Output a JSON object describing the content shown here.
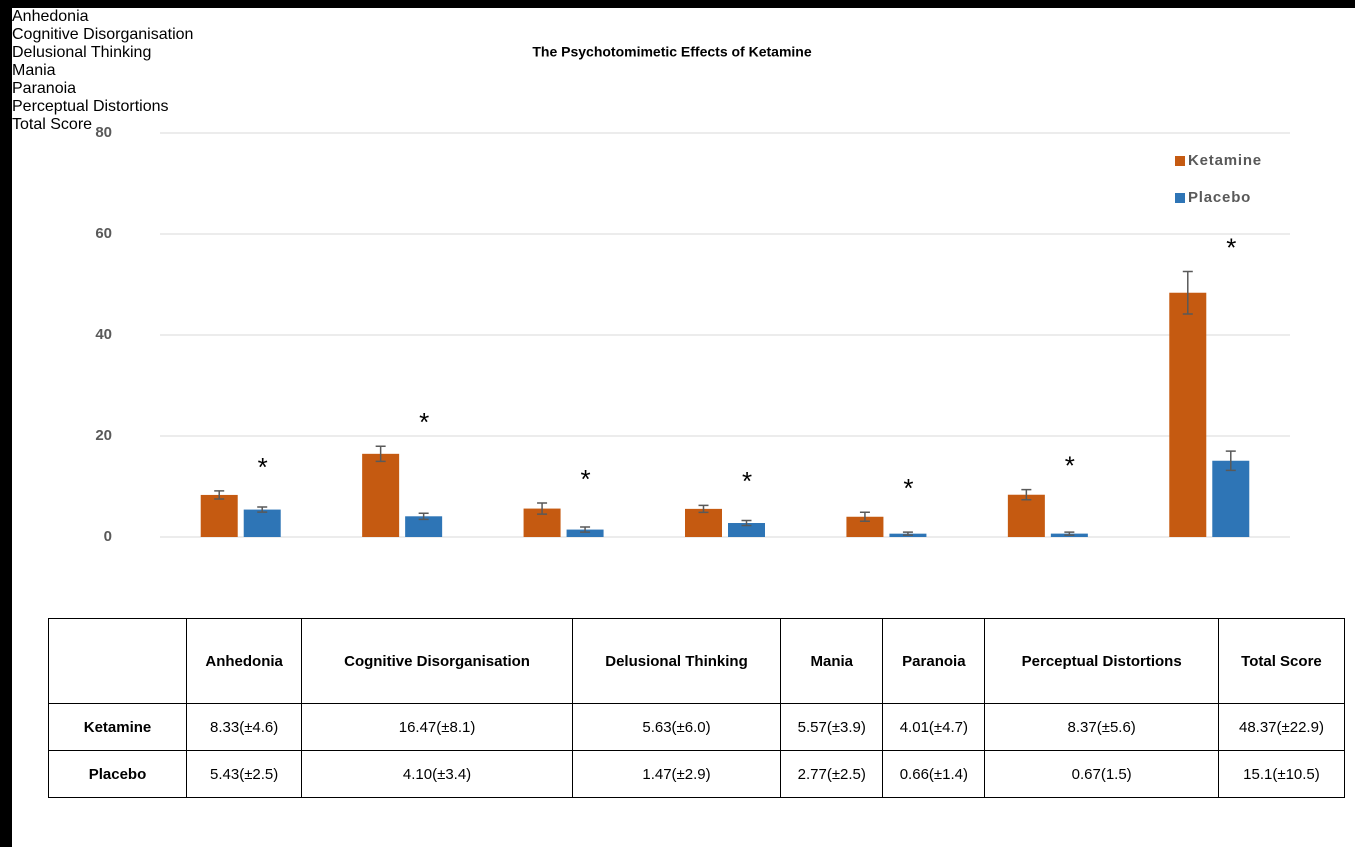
{
  "chart_data": {
    "type": "bar",
    "title": "The Psychotomimetic Effects of Ketamine",
    "categories": [
      "Anhedonia",
      "Cognitive Disorganisation",
      "Delusional Thinking",
      "Mania",
      "Paranoia",
      "Perceptual Distortions",
      "Total Score"
    ],
    "series": [
      {
        "name": "Ketamine",
        "color": "#c55a11",
        "values": [
          8.33,
          16.47,
          5.63,
          5.57,
          4.01,
          8.37,
          48.37
        ],
        "errors": [
          0.8,
          1.5,
          1.1,
          0.7,
          0.9,
          1.0,
          4.2
        ]
      },
      {
        "name": "Placebo",
        "color": "#2e75b6",
        "values": [
          5.43,
          4.1,
          1.47,
          2.77,
          0.66,
          0.67,
          15.1
        ],
        "errors": [
          0.5,
          0.6,
          0.5,
          0.5,
          0.3,
          0.3,
          1.9
        ]
      }
    ],
    "significance": [
      "*",
      "*",
      "*",
      "*",
      "*",
      "*",
      "*"
    ],
    "ylim": [
      0,
      80
    ],
    "yticks": [
      0,
      20,
      40,
      60,
      80
    ],
    "grid": true,
    "legend": "top-right"
  },
  "table": {
    "columns": [
      "Anhedonia",
      "Cognitive Disorganisation",
      "Delusional Thinking",
      "Mania",
      "Paranoia",
      "Perceptual Distortions",
      "Total Score"
    ],
    "rows": [
      [
        "Ketamine",
        "8.33(±4.6)",
        "16.47(±8.1)",
        "5.63(±6.0)",
        "5.57(±3.9)",
        "4.01(±4.7)",
        "8.37(±5.6)",
        "48.37(±22.9)"
      ],
      [
        "Placebo",
        "5.43(±2.5)",
        "4.10(±3.4)",
        "1.47(±2.9)",
        "2.77(±2.5)",
        "0.66(±1.4)",
        "0.67(1.5)",
        "15.1(±10.5)"
      ]
    ]
  }
}
